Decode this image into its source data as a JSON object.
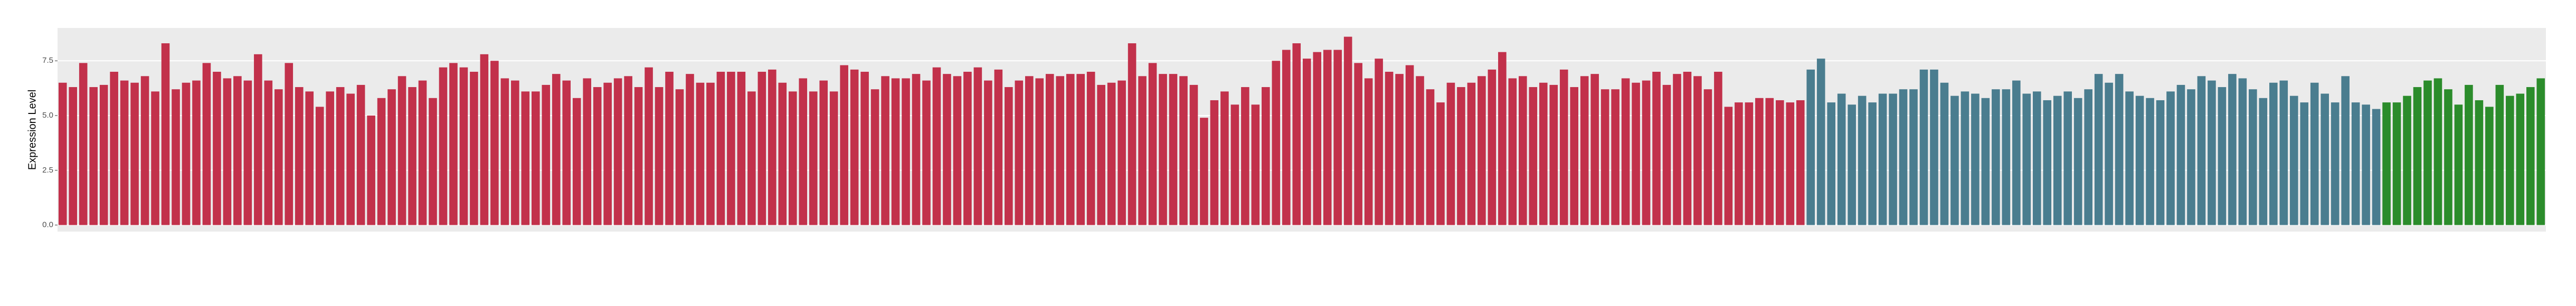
{
  "chart_data": {
    "type": "bar",
    "y_label": "Expression Level",
    "ylim": [
      -0.3,
      9.0
    ],
    "yticks": [
      {
        "value": 0,
        "label": "0.0"
      },
      {
        "value": 2.5,
        "label": "2.5"
      },
      {
        "value": 5,
        "label": "5.0"
      },
      {
        "value": 7.5,
        "label": "7.5"
      }
    ],
    "grid": true,
    "background": "#ebebeb",
    "series": [
      {
        "color": "#c2314b",
        "values": [
          6.5,
          6.3,
          7.4,
          6.3,
          6.4,
          7.0,
          6.6,
          6.5,
          6.8,
          6.1,
          8.3,
          6.2,
          6.5,
          6.6,
          7.4,
          7.0,
          6.7,
          6.8,
          6.6,
          7.8,
          6.6,
          6.2,
          7.4,
          6.3,
          6.1,
          5.4,
          6.1,
          6.3,
          6.0,
          6.4,
          5.0,
          5.8,
          6.2,
          6.8,
          6.3,
          6.6,
          5.8,
          7.2,
          7.4,
          7.2,
          7.0,
          7.8,
          7.5,
          6.7,
          6.6,
          6.1,
          6.1,
          6.4,
          6.9,
          6.6,
          5.8,
          6.7,
          6.3,
          6.5,
          6.7,
          6.8,
          6.3,
          7.2,
          6.3,
          7.0,
          6.2,
          6.9,
          6.5,
          6.5,
          7.0,
          7.0,
          7.0,
          6.1,
          7.0,
          7.1,
          6.5,
          6.1,
          6.7,
          6.1,
          6.6,
          6.1,
          7.3,
          7.1,
          7.0,
          6.2,
          6.8,
          6.7,
          6.7,
          6.9,
          6.6,
          7.2,
          6.9,
          6.8,
          7.0,
          7.2,
          6.6,
          7.1,
          6.3,
          6.6,
          6.8,
          6.7,
          6.9,
          6.8,
          6.9,
          6.9,
          7.0,
          6.4,
          6.5,
          6.6,
          8.3,
          6.8,
          7.4,
          6.9,
          6.9,
          6.8,
          6.4,
          4.9,
          5.7,
          6.1,
          5.5,
          6.3,
          5.5,
          6.3,
          7.5,
          8.0,
          8.3,
          7.6,
          7.9,
          8.0,
          8.0,
          8.6,
          7.4,
          6.7,
          7.6,
          7.0,
          6.9,
          7.3,
          6.8,
          6.2,
          5.6,
          6.5,
          6.3,
          6.5,
          6.8,
          7.1,
          7.9,
          6.7,
          6.8,
          6.3,
          6.5,
          6.4,
          7.1,
          6.3,
          6.8,
          6.9,
          6.2,
          6.2,
          6.7,
          6.5,
          6.6,
          7.0,
          6.4,
          6.9,
          7.0,
          6.8,
          6.2,
          7.0,
          5.4,
          5.6,
          5.6,
          5.8,
          5.8,
          5.7,
          5.6,
          5.7
        ]
      },
      {
        "color": "#4a7d8f",
        "values": [
          7.1,
          7.6,
          5.6,
          6.0,
          5.5,
          5.9,
          5.6,
          6.0,
          6.0,
          6.2,
          6.2,
          7.1,
          7.1,
          6.5,
          5.9,
          6.1,
          6.0,
          5.8,
          6.2,
          6.2,
          6.6,
          6.0,
          6.1,
          5.7,
          5.9,
          6.1,
          5.8,
          6.2,
          6.9,
          6.5,
          6.9,
          6.1,
          5.9,
          5.8,
          5.7,
          6.1,
          6.4,
          6.2,
          6.8,
          6.6,
          6.3,
          6.9,
          6.7,
          6.2,
          5.8,
          6.5,
          6.6,
          5.9,
          5.6,
          6.5,
          6.0,
          5.6,
          6.8,
          5.6,
          5.5,
          5.3
        ]
      },
      {
        "color": "#2b8c2b",
        "values": [
          5.6,
          5.6,
          5.9,
          6.3,
          6.6,
          6.7,
          6.2,
          5.5,
          6.4,
          5.7,
          5.4,
          6.4,
          5.9,
          6.0,
          6.3,
          6.7
        ]
      }
    ]
  }
}
